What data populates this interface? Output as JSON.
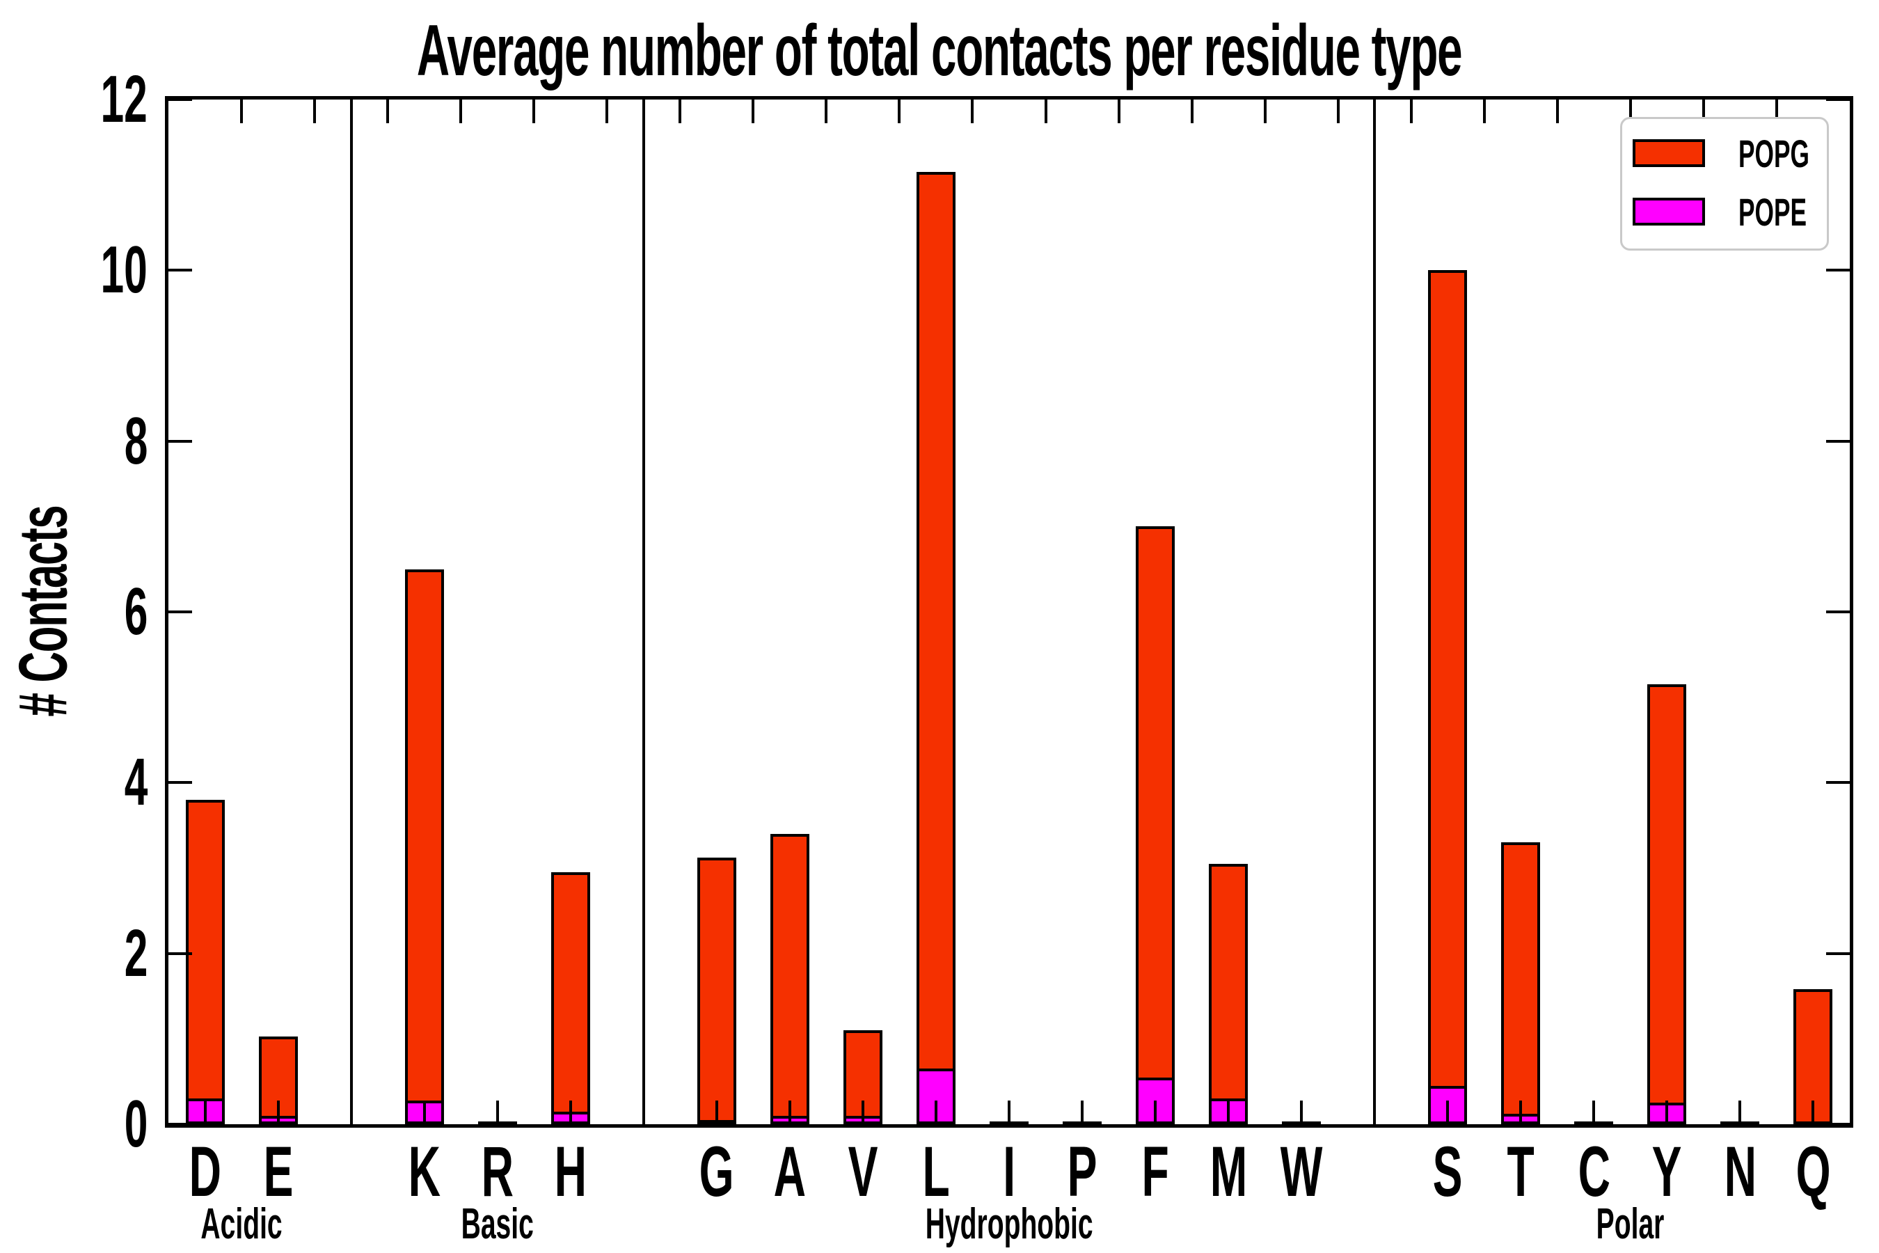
{
  "chart_data": {
    "type": "bar",
    "stacked": true,
    "title": "Average number of total contacts per residue type",
    "ylabel": "# Contacts",
    "ylim": [
      0,
      12
    ],
    "yticks": [
      0,
      2,
      4,
      6,
      8,
      10,
      12
    ],
    "grid": false,
    "legend": {
      "position": "top-right",
      "entries": [
        {
          "label": "POPG",
          "color": "#f53000"
        },
        {
          "label": "POPE",
          "color": "#ff00ff"
        }
      ]
    },
    "groups": [
      {
        "label": "Acidic",
        "categories": [
          "D",
          "E"
        ]
      },
      {
        "label": "Basic",
        "categories": [
          "K",
          "R",
          "H"
        ]
      },
      {
        "label": "Hydrophobic",
        "categories": [
          "G",
          "A",
          "V",
          "L",
          "I",
          "P",
          "F",
          "M",
          "W"
        ]
      },
      {
        "label": "Polar",
        "categories": [
          "S",
          "T",
          "C",
          "Y",
          "N",
          "Q"
        ]
      }
    ],
    "categories": [
      "D",
      "E",
      "K",
      "R",
      "H",
      "G",
      "A",
      "V",
      "L",
      "I",
      "P",
      "F",
      "M",
      "W",
      "S",
      "T",
      "C",
      "Y",
      "N",
      "Q"
    ],
    "series": [
      {
        "name": "POPE",
        "color": "#ff00ff",
        "values": [
          0.3,
          0.1,
          0.28,
          0.01,
          0.15,
          0.05,
          0.1,
          0.1,
          0.65,
          0.0,
          0.01,
          0.55,
          0.3,
          0.01,
          0.45,
          0.12,
          0.01,
          0.25,
          0.01,
          0.02
        ]
      },
      {
        "name": "POPG",
        "color": "#f53000",
        "values": [
          3.5,
          0.93,
          6.22,
          0.01,
          2.8,
          3.07,
          3.3,
          1.0,
          10.5,
          0.01,
          0.01,
          6.45,
          2.75,
          0.01,
          9.55,
          3.18,
          0.01,
          4.9,
          0.02,
          1.56
        ]
      }
    ],
    "totals": [
      3.8,
      1.03,
      6.5,
      0.02,
      2.95,
      3.12,
      3.4,
      1.1,
      11.15,
      0.01,
      0.02,
      7.0,
      3.05,
      0.02,
      10.0,
      3.3,
      0.02,
      5.15,
      0.03,
      1.58
    ]
  }
}
